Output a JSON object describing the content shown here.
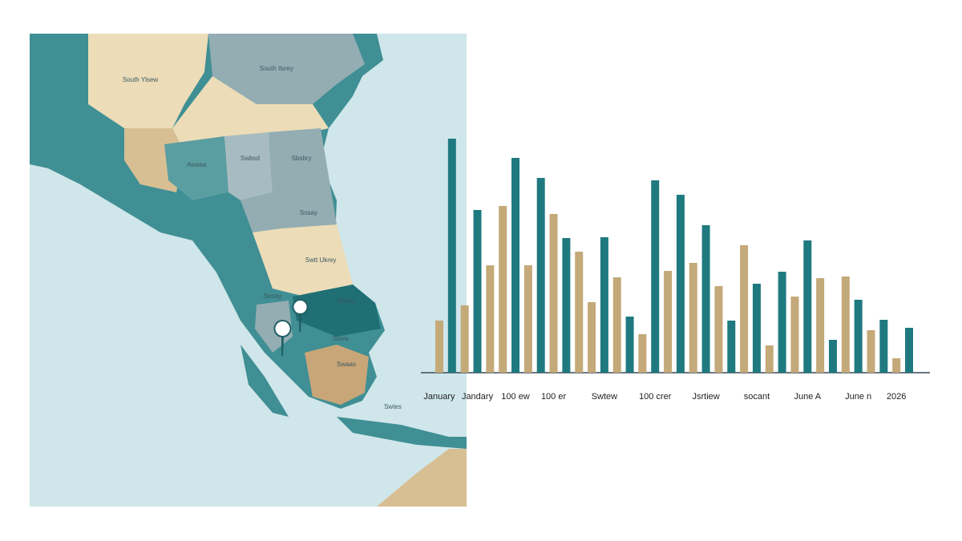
{
  "map": {
    "labels": [
      "South Ylsew",
      "South Ilsrey",
      "Awaaa",
      "Swbsd",
      "Sbsbry",
      "Sosay",
      "Swtt Ukrey",
      "Seoay",
      "Ssoay",
      "Soow",
      "Swaas",
      "Swtes"
    ]
  },
  "chart_data": {
    "type": "bar",
    "categories": [
      "January",
      null,
      null,
      "Jandary",
      null,
      null,
      "100 ew",
      null,
      null,
      "100 er",
      null,
      null,
      null,
      "Swtew",
      null,
      null,
      null,
      "100 crer",
      null,
      null,
      null,
      "Jsrtiew",
      null,
      null,
      null,
      "socant",
      null,
      null,
      null,
      "June A",
      null,
      null,
      null,
      "June n",
      null,
      null,
      "2026",
      null
    ],
    "series": [
      {
        "name": "tan",
        "color": "#c4a979",
        "values": [
          65,
          null,
          84,
          null,
          134,
          208,
          null,
          134,
          null,
          198,
          null,
          151,
          88,
          null,
          119,
          null,
          48,
          null,
          127,
          null,
          137,
          null,
          108,
          null,
          159,
          null,
          34,
          null,
          95,
          null,
          118,
          null,
          120,
          null,
          53,
          null,
          18,
          null
        ]
      },
      {
        "name": "teal",
        "color": "#1f7a80",
        "values": [
          null,
          292,
          null,
          203,
          null,
          null,
          268,
          null,
          243,
          null,
          168,
          null,
          null,
          169,
          null,
          70,
          null,
          240,
          null,
          222,
          null,
          184,
          null,
          65,
          null,
          111,
          null,
          126,
          null,
          165,
          null,
          41,
          null,
          91,
          null,
          66,
          null,
          56
        ]
      }
    ],
    "ylim": [
      0,
      300
    ]
  }
}
